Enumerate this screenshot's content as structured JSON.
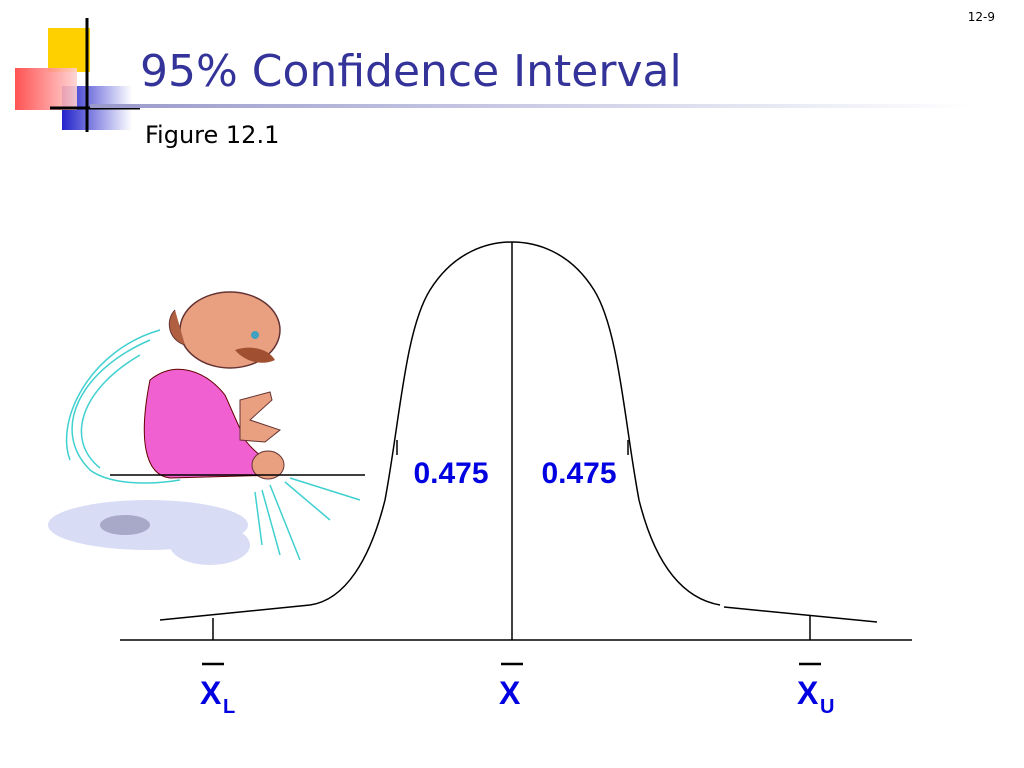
{
  "slide_number": "12-9",
  "title": "95% Confidence Interval",
  "subtitle": "Figure 12.1",
  "diagram": {
    "areas": [
      {
        "label": "0.475"
      },
      {
        "label": "0.475"
      }
    ],
    "axis_labels": [
      {
        "symbol": "X",
        "subscript": "L"
      },
      {
        "symbol": "X"
      },
      {
        "symbol": "X",
        "subscript": "U"
      }
    ]
  }
}
